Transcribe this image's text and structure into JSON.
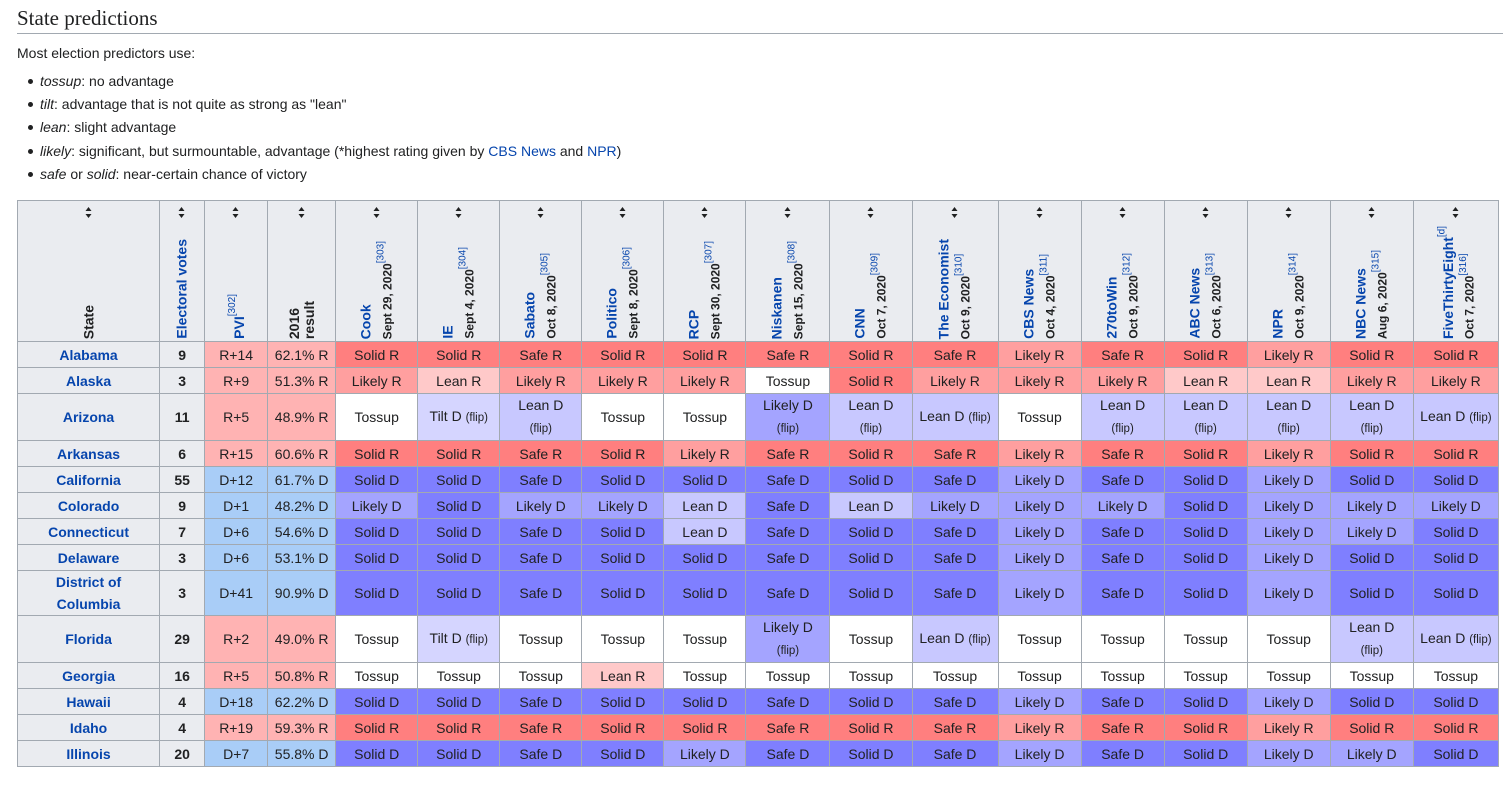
{
  "heading": "State predictions",
  "intro": "Most election predictors use:",
  "definitions": [
    {
      "term": "tossup",
      "text": ": no advantage"
    },
    {
      "term": "tilt",
      "text": ": advantage that is not quite as strong as \"lean\""
    },
    {
      "term": "lean",
      "text": ": slight advantage"
    },
    {
      "term": "likely",
      "text": ": significant, but surmountable, advantage (*highest rating given by ",
      "link1": "CBS News",
      "mid": " and ",
      "link2": "NPR",
      "end": ")"
    },
    {
      "term": "safe",
      "text": " or ",
      "term2": "solid",
      "text2": ": near-certain chance of victory"
    }
  ],
  "columns": [
    {
      "name": "State",
      "plain": true
    },
    {
      "name": "Electoral votes",
      "link": true
    },
    {
      "name": "PVI",
      "link": true,
      "ref": "[302]"
    },
    {
      "name": "2016",
      "name2": "result",
      "plain": true
    },
    {
      "name": "Cook",
      "date": "Sept 29, 2020",
      "ref": "[303]"
    },
    {
      "name": "IE",
      "date": "Sept 4, 2020",
      "ref": "[304]"
    },
    {
      "name": "Sabato",
      "date": "Oct 8, 2020",
      "ref": "[305]"
    },
    {
      "name": "Politico",
      "date": "Sept 8, 2020",
      "ref": "[306]"
    },
    {
      "name": "RCP",
      "date": "Sept 30, 2020",
      "ref": "[307]"
    },
    {
      "name": "Niskanen",
      "date": "Sept 15, 2020",
      "ref": "[308]"
    },
    {
      "name": "CNN",
      "date": "Oct 7, 2020",
      "ref": "[309]"
    },
    {
      "name": "The Economist",
      "date": "Oct 9, 2020",
      "ref": "[310]"
    },
    {
      "name": "CBS News",
      "date": "Oct 4, 2020",
      "ref": "[311]"
    },
    {
      "name": "270toWin",
      "date": "Oct 9, 2020",
      "ref": "[312]"
    },
    {
      "name": "ABC News",
      "date": "Oct 6, 2020",
      "ref": "[313]"
    },
    {
      "name": "NPR",
      "date": "Oct 9, 2020",
      "ref": "[314]"
    },
    {
      "name": "NBC News",
      "date": "Aug 6, 2020",
      "ref": "[315]"
    },
    {
      "name": "FiveThirtyEight",
      "ref_pre": "[d]",
      "date": "Oct 7, 2020",
      "ref": "[316]"
    }
  ],
  "rows": [
    {
      "state": "Alabama",
      "ev": "9",
      "pvi": "R+14",
      "r2016": "62.1% R",
      "ratings": [
        "Solid R",
        "Solid R",
        "Safe R",
        "Solid R",
        "Solid R",
        "Safe R",
        "Solid R",
        "Safe R",
        "Likely R",
        "Safe R",
        "Solid R",
        "Likely R",
        "Solid R",
        "Solid R"
      ]
    },
    {
      "state": "Alaska",
      "ev": "3",
      "pvi": "R+9",
      "r2016": "51.3% R",
      "ratings": [
        "Likely R",
        "Lean R",
        "Likely R",
        "Likely R",
        "Likely R",
        "Tossup",
        "Solid R",
        "Likely R",
        "Likely R",
        "Likely R",
        "Lean R",
        "Lean R",
        "Likely R",
        "Likely R"
      ]
    },
    {
      "state": "Arizona",
      "ev": "11",
      "pvi": "R+5",
      "r2016": "48.9% R",
      "tall": true,
      "ratings": [
        "Tossup",
        "Tilt D (flip)",
        "Lean D (flip)",
        "Tossup",
        "Tossup",
        "Likely D (flip)",
        "Lean D (flip)",
        "Lean D (flip)",
        "Tossup",
        "Lean D (flip)",
        "Lean D (flip)",
        "Lean D (flip)",
        "Lean D (flip)",
        "Lean D (flip)"
      ]
    },
    {
      "state": "Arkansas",
      "ev": "6",
      "pvi": "R+15",
      "r2016": "60.6% R",
      "ratings": [
        "Solid R",
        "Solid R",
        "Safe R",
        "Solid R",
        "Likely R",
        "Safe R",
        "Solid R",
        "Safe R",
        "Likely R",
        "Safe R",
        "Solid R",
        "Likely R",
        "Solid R",
        "Solid R"
      ]
    },
    {
      "state": "California",
      "ev": "55",
      "pvi": "D+12",
      "r2016": "61.7% D",
      "ratings": [
        "Solid D",
        "Solid D",
        "Safe D",
        "Solid D",
        "Solid D",
        "Safe D",
        "Solid D",
        "Safe D",
        "Likely D",
        "Safe D",
        "Solid D",
        "Likely D",
        "Solid D",
        "Solid D"
      ]
    },
    {
      "state": "Colorado",
      "ev": "9",
      "pvi": "D+1",
      "r2016": "48.2% D",
      "ratings": [
        "Likely D",
        "Solid D",
        "Likely D",
        "Likely D",
        "Lean D",
        "Safe D",
        "Lean D",
        "Likely D",
        "Likely D",
        "Likely D",
        "Solid D",
        "Likely D",
        "Likely D",
        "Likely D"
      ]
    },
    {
      "state": "Connecticut",
      "ev": "7",
      "pvi": "D+6",
      "r2016": "54.6% D",
      "ratings": [
        "Solid D",
        "Solid D",
        "Safe D",
        "Solid D",
        "Lean D",
        "Safe D",
        "Solid D",
        "Safe D",
        "Likely D",
        "Safe D",
        "Solid D",
        "Likely D",
        "Likely D",
        "Solid D"
      ]
    },
    {
      "state": "Delaware",
      "ev": "3",
      "pvi": "D+6",
      "r2016": "53.1% D",
      "ratings": [
        "Solid D",
        "Solid D",
        "Safe D",
        "Solid D",
        "Solid D",
        "Safe D",
        "Solid D",
        "Safe D",
        "Likely D",
        "Safe D",
        "Solid D",
        "Likely D",
        "Solid D",
        "Solid D"
      ]
    },
    {
      "state": "District of Columbia",
      "ev": "3",
      "pvi": "D+41",
      "r2016": "90.9% D",
      "tall": true,
      "ratings": [
        "Solid D",
        "Solid D",
        "Safe D",
        "Solid D",
        "Solid D",
        "Safe D",
        "Solid D",
        "Safe D",
        "Likely D",
        "Safe D",
        "Solid D",
        "Likely D",
        "Solid D",
        "Solid D"
      ]
    },
    {
      "state": "Florida",
      "ev": "29",
      "pvi": "R+2",
      "r2016": "49.0% R",
      "tall": true,
      "ratings": [
        "Tossup",
        "Tilt D (flip)",
        "Tossup",
        "Tossup",
        "Tossup",
        "Likely D (flip)",
        "Tossup",
        "Lean D (flip)",
        "Tossup",
        "Tossup",
        "Tossup",
        "Tossup",
        "Lean D (flip)",
        "Lean D (flip)"
      ]
    },
    {
      "state": "Georgia",
      "ev": "16",
      "pvi": "R+5",
      "r2016": "50.8% R",
      "ratings": [
        "Tossup",
        "Tossup",
        "Tossup",
        "Lean R",
        "Tossup",
        "Tossup",
        "Tossup",
        "Tossup",
        "Tossup",
        "Tossup",
        "Tossup",
        "Tossup",
        "Tossup",
        "Tossup"
      ]
    },
    {
      "state": "Hawaii",
      "ev": "4",
      "pvi": "D+18",
      "r2016": "62.2% D",
      "ratings": [
        "Solid D",
        "Solid D",
        "Safe D",
        "Solid D",
        "Solid D",
        "Safe D",
        "Solid D",
        "Safe D",
        "Likely D",
        "Safe D",
        "Solid D",
        "Likely D",
        "Solid D",
        "Solid D"
      ]
    },
    {
      "state": "Idaho",
      "ev": "4",
      "pvi": "R+19",
      "r2016": "59.3% R",
      "ratings": [
        "Solid R",
        "Solid R",
        "Safe R",
        "Solid R",
        "Solid R",
        "Safe R",
        "Solid R",
        "Safe R",
        "Likely R",
        "Safe R",
        "Solid R",
        "Likely R",
        "Solid R",
        "Solid R"
      ]
    },
    {
      "state": "Illinois",
      "ev": "20",
      "pvi": "D+7",
      "r2016": "55.8% D",
      "ratings": [
        "Solid D",
        "Solid D",
        "Safe D",
        "Solid D",
        "Likely D",
        "Safe D",
        "Solid D",
        "Safe D",
        "Likely D",
        "Safe D",
        "Solid D",
        "Likely D",
        "Likely D",
        "Solid D"
      ]
    }
  ],
  "colors": {
    "solid_r": "#ff7f7f",
    "likely_r": "#ff9f9f",
    "lean_r": "#ffc9c9",
    "tossup": "#ffffff",
    "tilt_d": "#d5d5ff",
    "lean_d": "#c8c8ff",
    "likely_d": "#a4a4ff",
    "solid_d": "#7f7fff",
    "pvi_r": "#ffb3b3",
    "pvi_d": "#a9cdf7",
    "header": "#eaecf0",
    "link": "#0645ad"
  }
}
